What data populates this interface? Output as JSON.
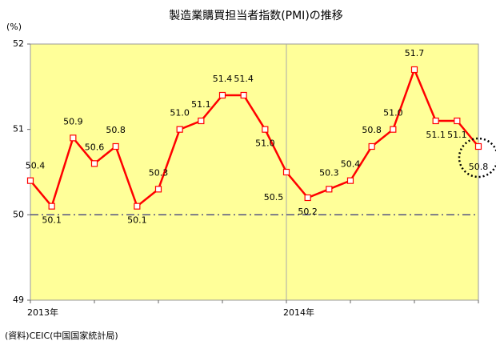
{
  "chart_data": {
    "type": "line",
    "title": "製造業購買担当者指数(PMI)の推移",
    "y_label": "(%)",
    "source": "(資料)CEIC(中国国家統計局)",
    "categories": [
      "2013年",
      null,
      null,
      null,
      null,
      null,
      null,
      null,
      null,
      null,
      null,
      null,
      "2014年",
      null,
      null,
      null,
      null,
      null,
      null,
      null,
      null,
      null
    ],
    "series": [
      {
        "name": "PMI",
        "color": "#ff0000",
        "values": [
          50.4,
          50.1,
          50.9,
          50.6,
          50.8,
          50.1,
          50.3,
          51.0,
          51.1,
          51.4,
          51.4,
          51.0,
          50.5,
          50.2,
          50.3,
          50.4,
          50.8,
          51.0,
          51.7,
          51.1,
          51.1,
          50.8
        ],
        "value_labels": [
          "50.4",
          "50.1",
          "50.9",
          "50.6",
          "50.8",
          "50.1",
          "50.3",
          "51.0",
          "51.1",
          "51.4",
          "51.4",
          "51.0",
          "50.5",
          "50.2",
          "50.3",
          "50.4",
          "50.8",
          "51.0",
          "51.7",
          "51.1",
          "51.1",
          "50.8"
        ]
      }
    ],
    "ylim": [
      49,
      52
    ],
    "yticks": [
      49,
      50,
      51,
      52
    ],
    "reference_line": 50,
    "reference_color": "#1f1f7a",
    "background": "#ffff99"
  }
}
